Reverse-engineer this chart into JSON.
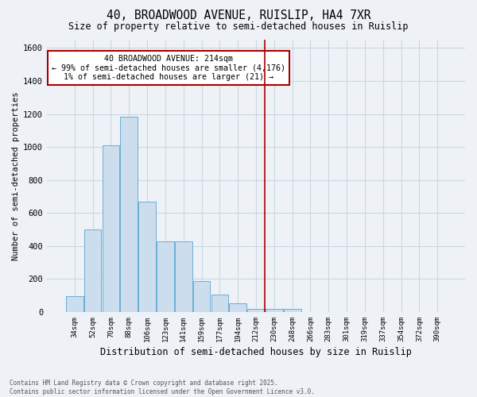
{
  "title_line1": "40, BROADWOOD AVENUE, RUISLIP, HA4 7XR",
  "title_line2": "Size of property relative to semi-detached houses in Ruislip",
  "xlabel": "Distribution of semi-detached houses by size in Ruislip",
  "ylabel": "Number of semi-detached properties",
  "categories": [
    "34sqm",
    "52sqm",
    "70sqm",
    "88sqm",
    "106sqm",
    "123sqm",
    "141sqm",
    "159sqm",
    "177sqm",
    "194sqm",
    "212sqm",
    "230sqm",
    "248sqm",
    "266sqm",
    "283sqm",
    "301sqm",
    "319sqm",
    "337sqm",
    "354sqm",
    "372sqm",
    "390sqm"
  ],
  "values": [
    95,
    500,
    1010,
    1185,
    670,
    430,
    430,
    185,
    105,
    55,
    20,
    20,
    20,
    0,
    0,
    0,
    0,
    0,
    0,
    0,
    0
  ],
  "bar_color": "#ccdded",
  "bar_edge_color": "#6aaed6",
  "grid_color": "#c8d8e4",
  "vline_x_idx": 10.5,
  "vline_color": "#aa0000",
  "annotation_text": "40 BROADWOOD AVENUE: 214sqm\n← 99% of semi-detached houses are smaller (4,176)\n1% of semi-detached houses are larger (21) →",
  "annotation_box_color": "#ffffff",
  "annotation_box_edge": "#aa0000",
  "ylim": [
    0,
    1650
  ],
  "yticks": [
    0,
    200,
    400,
    600,
    800,
    1000,
    1200,
    1400,
    1600
  ],
  "footer": "Contains HM Land Registry data © Crown copyright and database right 2025.\nContains public sector information licensed under the Open Government Licence v3.0.",
  "bg_color": "#eef2f7"
}
